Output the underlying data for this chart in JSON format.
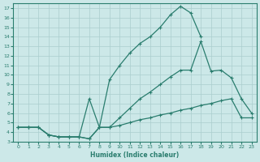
{
  "xlabel": "Humidex (Indice chaleur)",
  "bg_color": "#cce8e8",
  "grid_color": "#aacece",
  "line_color": "#2a7d6e",
  "xlim": [
    -0.5,
    23.5
  ],
  "ylim": [
    3,
    17.5
  ],
  "xticks": [
    0,
    1,
    2,
    3,
    4,
    5,
    6,
    7,
    8,
    9,
    10,
    11,
    12,
    13,
    14,
    15,
    16,
    17,
    18,
    19,
    20,
    21,
    22,
    23
  ],
  "yticks": [
    3,
    4,
    5,
    6,
    7,
    8,
    9,
    10,
    11,
    12,
    13,
    14,
    15,
    16,
    17
  ],
  "line1_x": [
    0,
    1,
    2,
    3,
    4,
    5,
    6,
    7,
    8,
    9,
    10,
    11,
    12,
    13,
    14,
    15,
    16,
    17,
    18,
    19,
    20,
    21,
    22,
    23
  ],
  "line1_y": [
    4.5,
    4.5,
    4.5,
    3.7,
    3.5,
    3.5,
    3.5,
    3.3,
    4.5,
    4.5,
    4.7,
    5.0,
    5.3,
    5.5,
    5.8,
    6.0,
    6.3,
    6.5,
    6.8,
    7.0,
    7.3,
    7.5,
    5.5,
    5.5
  ],
  "line2_x": [
    0,
    1,
    2,
    3,
    4,
    5,
    6,
    7,
    8,
    9,
    10,
    11,
    12,
    13,
    14,
    15,
    16,
    17,
    18,
    19,
    20,
    21,
    22,
    23
  ],
  "line2_y": [
    4.5,
    4.5,
    4.5,
    3.7,
    3.5,
    3.5,
    3.5,
    3.3,
    4.5,
    9.5,
    11.0,
    12.3,
    13.3,
    14.0,
    15.0,
    16.3,
    17.2,
    16.5,
    14.0,
    null,
    null,
    null,
    null,
    null
  ],
  "line3_x": [
    0,
    1,
    2,
    3,
    4,
    5,
    6,
    7,
    8,
    9,
    10,
    11,
    12,
    13,
    14,
    15,
    16,
    17,
    18,
    19,
    20,
    21,
    22,
    23
  ],
  "line3_y": [
    4.5,
    4.5,
    4.5,
    3.7,
    3.5,
    3.5,
    3.5,
    7.5,
    4.5,
    4.5,
    5.5,
    6.5,
    7.5,
    8.2,
    9.0,
    9.8,
    10.5,
    10.5,
    13.5,
    10.4,
    10.5,
    9.7,
    7.5,
    6.0
  ]
}
